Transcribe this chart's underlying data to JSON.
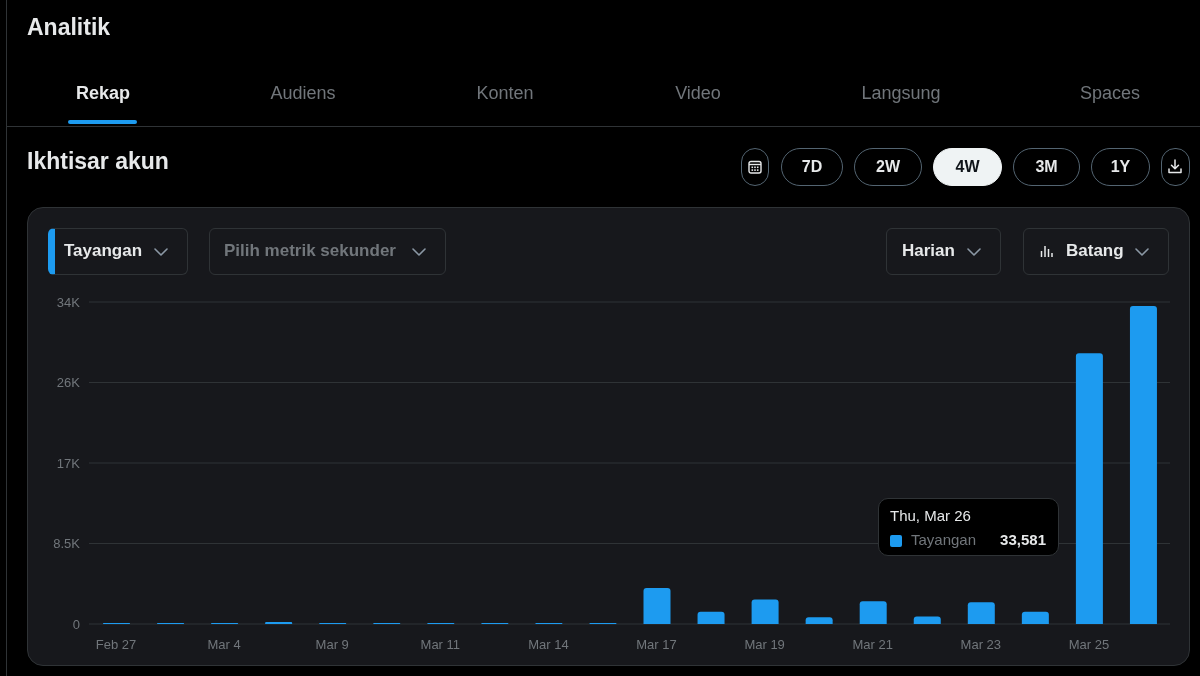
{
  "chart_data": {
    "type": "bar",
    "title": "Analitik",
    "subtitle": "Ikhtisar akun",
    "categories": [
      "Feb 27",
      null,
      "Mar 4",
      null,
      "Mar 9",
      null,
      "Mar 11",
      null,
      "Mar 14",
      null,
      "Mar 17",
      null,
      "Mar 19",
      null,
      "Mar 21",
      null,
      "Mar 23",
      null,
      "Mar 25",
      null
    ],
    "values": [
      100,
      100,
      100,
      200,
      100,
      100,
      100,
      100,
      100,
      100,
      3800,
      1300,
      2600,
      700,
      2400,
      800,
      2300,
      1300,
      28600,
      33581
    ],
    "color": "#1d9bf0",
    "ylim": [
      0,
      34000
    ],
    "yticks": [
      0,
      {
        "value": 8500,
        "label": "8.5K"
      },
      {
        "value": 17000,
        "label": "17K"
      },
      {
        "value": 25500,
        "label": "26K"
      },
      {
        "value": 34000,
        "label": "34K"
      }
    ],
    "grid": "y",
    "annotations": [
      "Rekap",
      "Audiens",
      "Konten",
      "Video",
      "Langsung",
      "Spaces",
      "7D",
      "2W",
      "4W",
      "3M",
      "1Y",
      "Tayangan",
      "Pilih metrik sekunder",
      "Harian",
      "Batang",
      "Thu, Mar 26",
      "Tayangan",
      "33,581"
    ]
  }
}
